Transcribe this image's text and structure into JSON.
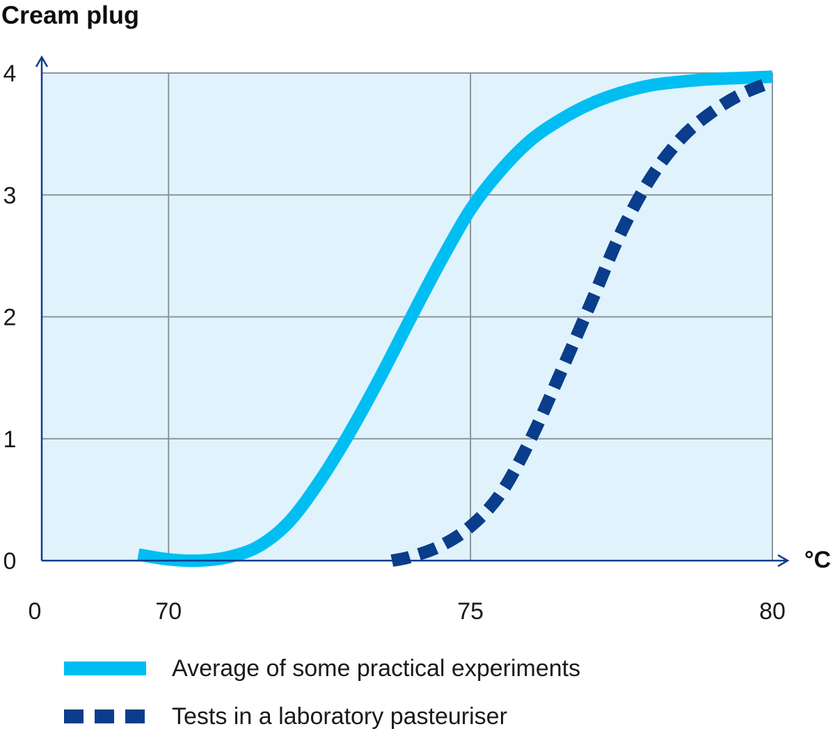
{
  "chart_data": {
    "type": "line",
    "ylabel": "Cream plug",
    "xlabel": "°C",
    "origin_label": "0",
    "xlim": [
      67.9,
      80
    ],
    "ylim": [
      0,
      4
    ],
    "x_ticks": [
      {
        "value": 70,
        "label": "70"
      },
      {
        "value": 75,
        "label": "75"
      },
      {
        "value": 80,
        "label": "80"
      }
    ],
    "y_ticks": [
      {
        "value": 0,
        "label": "0"
      },
      {
        "value": 1,
        "label": "1"
      },
      {
        "value": 2,
        "label": "2"
      },
      {
        "value": 3,
        "label": "3"
      },
      {
        "value": 4,
        "label": "4"
      }
    ],
    "grid": true,
    "legend_position": "bottom-left",
    "series": [
      {
        "name": "Average of some practical experiments",
        "style": "solid",
        "color": "#00BEF2",
        "x": [
          69.5,
          70.0,
          70.5,
          71.0,
          71.5,
          72.0,
          72.5,
          73.0,
          73.5,
          74.0,
          74.5,
          75.0,
          75.5,
          76.0,
          76.5,
          77.0,
          77.5,
          78.0,
          78.5,
          79.0,
          79.5,
          80.0
        ],
        "y": [
          0.05,
          0.01,
          0.0,
          0.03,
          0.12,
          0.32,
          0.65,
          1.05,
          1.5,
          1.98,
          2.45,
          2.88,
          3.2,
          3.45,
          3.62,
          3.75,
          3.84,
          3.9,
          3.93,
          3.95,
          3.96,
          3.97
        ]
      },
      {
        "name": "Tests in a laboratory pasteuriser",
        "style": "dashed",
        "color": "#0A3D8C",
        "x": [
          73.7,
          74.0,
          74.5,
          75.0,
          75.5,
          76.0,
          76.5,
          77.0,
          77.5,
          78.0,
          78.5,
          79.0,
          79.5,
          80.0
        ],
        "y": [
          0.0,
          0.03,
          0.12,
          0.28,
          0.55,
          1.0,
          1.55,
          2.12,
          2.7,
          3.15,
          3.47,
          3.68,
          3.83,
          3.93
        ]
      }
    ]
  },
  "colors": {
    "plot_background": "#E0F3FC",
    "grid": "#8A949C",
    "axis": "#0A3D8C"
  }
}
